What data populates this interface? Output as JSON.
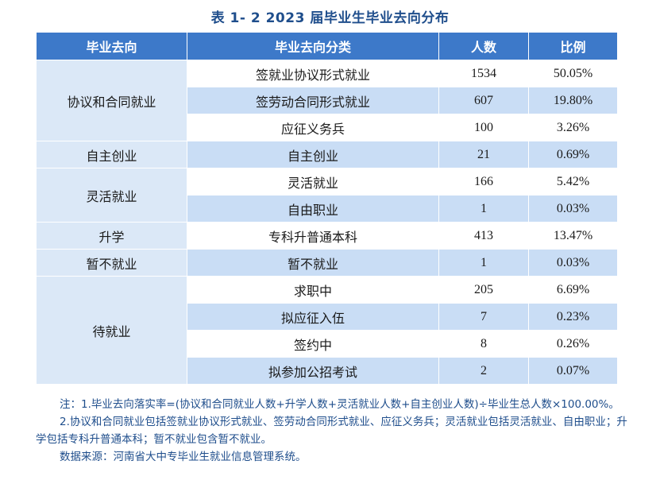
{
  "title": "表 1- 2  2023 届毕业生毕业去向分布",
  "headers": [
    "毕业去向",
    "毕业去向分类",
    "人数",
    "比例"
  ],
  "groups": [
    {
      "name": "协议和合同就业",
      "rows": [
        {
          "category": "签就业协议形式就业",
          "count": "1534",
          "ratio": "50.05%"
        },
        {
          "category": "签劳动合同形式就业",
          "count": "607",
          "ratio": "19.80%"
        },
        {
          "category": "应征义务兵",
          "count": "100",
          "ratio": "3.26%"
        }
      ]
    },
    {
      "name": "自主创业",
      "rows": [
        {
          "category": "自主创业",
          "count": "21",
          "ratio": "0.69%"
        }
      ]
    },
    {
      "name": "灵活就业",
      "rows": [
        {
          "category": "灵活就业",
          "count": "166",
          "ratio": "5.42%"
        },
        {
          "category": "自由职业",
          "count": "1",
          "ratio": "0.03%"
        }
      ]
    },
    {
      "name": "升学",
      "rows": [
        {
          "category": "专科升普通本科",
          "count": "413",
          "ratio": "13.47%"
        }
      ]
    },
    {
      "name": "暂不就业",
      "rows": [
        {
          "category": "暂不就业",
          "count": "1",
          "ratio": "0.03%"
        }
      ]
    },
    {
      "name": "待就业",
      "rows": [
        {
          "category": "求职中",
          "count": "205",
          "ratio": "6.69%"
        },
        {
          "category": "拟应征入伍",
          "count": "7",
          "ratio": "0.23%"
        },
        {
          "category": "签约中",
          "count": "8",
          "ratio": "0.26%"
        },
        {
          "category": "拟参加公招考试",
          "count": "2",
          "ratio": "0.07%"
        }
      ]
    }
  ],
  "notes": {
    "note1": "注：1.毕业去向落实率=(协议和合同就业人数+升学人数+灵活就业人数+自主创业人数)÷毕业生总人数×100.00%。",
    "note2": "2.协议和合同就业包括签就业协议形式就业、签劳动合同形式就业、应征义务兵；灵活就业包括灵活就业、自由职业；升学包括专科升普通本科；暂不就业包含暂不就业。",
    "source": "数据来源：河南省大中专毕业生就业信息管理系统。"
  }
}
